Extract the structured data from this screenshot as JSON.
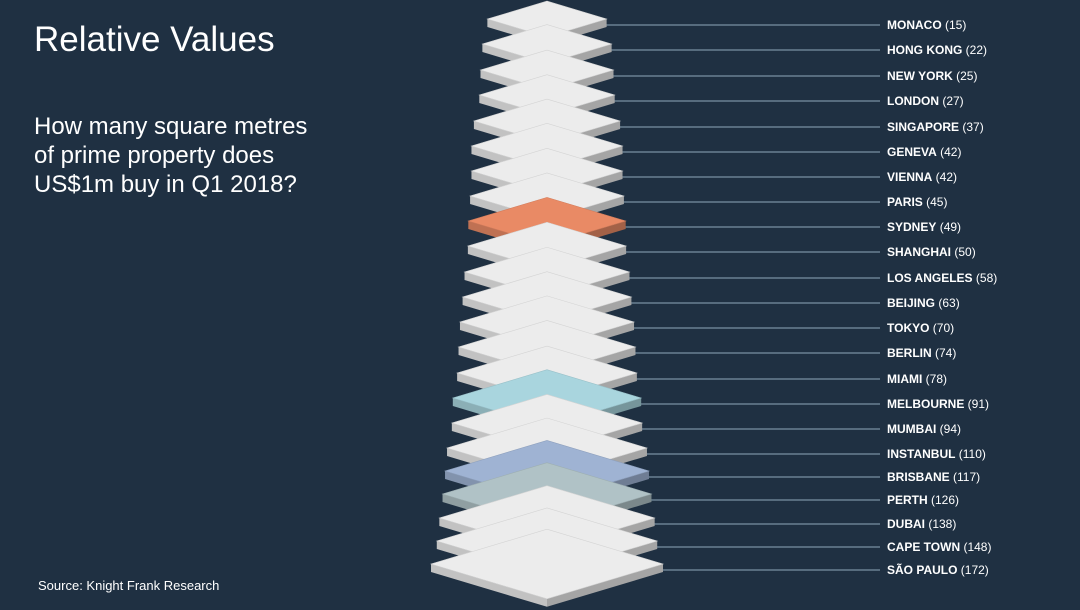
{
  "title": "Relative Values",
  "subtitle_lines": [
    "How many square metres",
    "of prime property does",
    "US$1m buy in Q1 2018?"
  ],
  "source": "Source: Knight Frank Research",
  "colors": {
    "background": "#1f3042",
    "slab_default": "#ececec",
    "sydney": "#e98a65",
    "melbourne": "#a9d5de",
    "brisbane": "#9fb3d3",
    "perth": "#b0c2c6",
    "leader_line": "#8fa9bb"
  },
  "chart_data": {
    "type": "bar",
    "title": "How many square metres of prime property does US$1m buy in Q1 2018?",
    "unit": "square metres",
    "categories": [
      "MONACO",
      "HONG KONG",
      "NEW YORK",
      "LONDON",
      "SINGAPORE",
      "GENEVA",
      "VIENNA",
      "PARIS",
      "SYDNEY",
      "SHANGHAI",
      "LOS ANGELES",
      "BEIJING",
      "TOKYO",
      "BERLIN",
      "MIAMI",
      "MELBOURNE",
      "MUMBAI",
      "INSTANBUL",
      "BRISBANE",
      "PERTH",
      "DUBAI",
      "CAPE TOWN",
      "SÃO PAULO"
    ],
    "values": [
      15,
      22,
      25,
      27,
      37,
      42,
      42,
      45,
      49,
      50,
      58,
      63,
      70,
      74,
      78,
      91,
      94,
      110,
      117,
      126,
      138,
      148,
      172
    ],
    "value_labels": [
      "(15)",
      "(22)",
      "(25)",
      "(27)",
      "(37)",
      "(42)",
      "(42)",
      "(45)",
      "(49)",
      "(50)",
      "(58)",
      "(63)",
      "(70)",
      "(74)",
      "(78)",
      "(91)",
      "(94)",
      "(110)",
      "(117)",
      "(126)",
      "(138)",
      "(148)",
      "(172)"
    ],
    "highlight": {
      "SYDNEY": "#e98a65",
      "MELBOURNE": "#a9d5de",
      "BRISBANE": "#9fb3d3",
      "PERTH": "#b0c2c6"
    }
  }
}
